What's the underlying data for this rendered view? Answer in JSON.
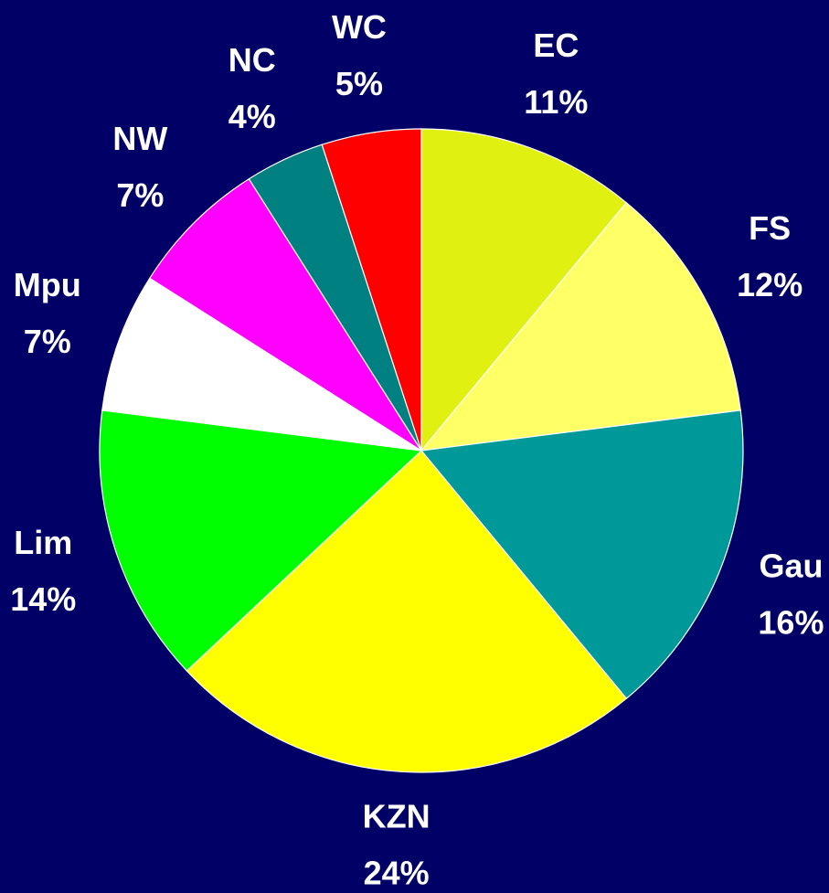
{
  "chart_data": {
    "type": "pie",
    "categories": [
      "EC",
      "FS",
      "Gau",
      "KZN",
      "Lim",
      "Mpu",
      "NW",
      "NC",
      "WC"
    ],
    "values": [
      11,
      12,
      16,
      24,
      14,
      7,
      7,
      4,
      5
    ],
    "value_labels": [
      "11%",
      "12%",
      "16%",
      "24%",
      "14%",
      "7%",
      "7%",
      "4%",
      "5%"
    ],
    "colors": [
      "#e0f010",
      "#ffff66",
      "#009999",
      "#ffff00",
      "#00ff00",
      "#ffffff",
      "#ff00ff",
      "#008080",
      "#ff0000"
    ]
  }
}
